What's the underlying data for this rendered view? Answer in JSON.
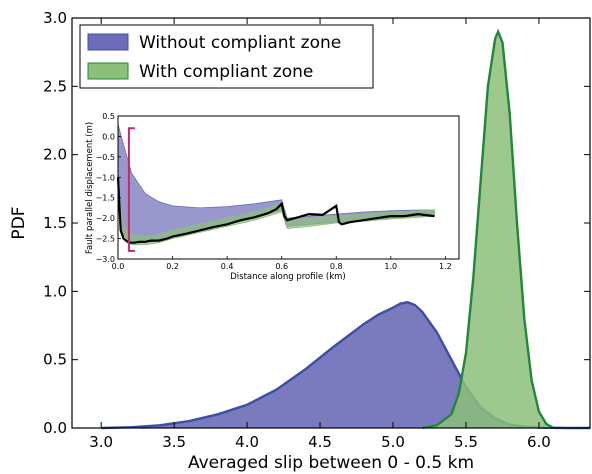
{
  "chart_data": [
    {
      "type": "area",
      "xlabel": "Averaged slip between 0 - 0.5 km",
      "ylabel": "PDF",
      "xlim": [
        2.8,
        6.35
      ],
      "ylim": [
        0,
        3.0
      ],
      "x_ticks": [
        "3.0",
        "3.5",
        "4.0",
        "4.5",
        "5.0",
        "5.5",
        "6.0"
      ],
      "y_ticks": [
        "0.0",
        "0.5",
        "1.0",
        "1.5",
        "2.0",
        "2.5",
        "3.0"
      ],
      "grid": false,
      "legend_position": "top-left",
      "series": [
        {
          "name": "Without compliant zone",
          "color": "#6c6cb8",
          "edge_color": "#3b4fa6",
          "x": [
            3.0,
            3.2,
            3.4,
            3.6,
            3.8,
            4.0,
            4.2,
            4.4,
            4.6,
            4.8,
            4.9,
            5.0,
            5.05,
            5.1,
            5.15,
            5.2,
            5.3,
            5.4,
            5.5,
            5.6,
            5.7,
            5.8,
            5.9,
            6.0,
            6.2,
            6.35
          ],
          "y": [
            0.0,
            0.005,
            0.02,
            0.05,
            0.1,
            0.17,
            0.28,
            0.43,
            0.6,
            0.76,
            0.83,
            0.88,
            0.91,
            0.92,
            0.9,
            0.85,
            0.7,
            0.5,
            0.3,
            0.15,
            0.07,
            0.025,
            0.01,
            0.003,
            0.0,
            0.0
          ]
        },
        {
          "name": "With compliant zone",
          "color": "#8cc07a",
          "edge_color": "#22873a",
          "x": [
            5.2,
            5.3,
            5.4,
            5.45,
            5.5,
            5.55,
            5.6,
            5.65,
            5.7,
            5.72,
            5.75,
            5.8,
            5.85,
            5.9,
            5.95,
            6.0,
            6.05,
            6.1
          ],
          "y": [
            0.0,
            0.02,
            0.1,
            0.25,
            0.55,
            1.1,
            1.8,
            2.5,
            2.85,
            2.9,
            2.82,
            2.3,
            1.5,
            0.8,
            0.35,
            0.12,
            0.03,
            0.0
          ]
        }
      ]
    },
    {
      "type": "line",
      "xlabel": "Distance along profile (km)",
      "ylabel": "Fault parallel displacement (m)",
      "xlim": [
        0.0,
        1.25
      ],
      "ylim": [
        -3.0,
        0.5
      ],
      "x_ticks": [
        "0.0",
        "0.2",
        "0.4",
        "0.6",
        "0.8",
        "1.0",
        "1.2"
      ],
      "y_ticks": [
        "0.5",
        "0.0",
        "−0.5",
        "−1.0",
        "−1.5",
        "−2.0",
        "−2.5",
        "−3.0"
      ],
      "bracket": {
        "x": 0.04,
        "y_range": [
          -2.8,
          0.2
        ],
        "color": "#c8286a"
      },
      "bands": [
        {
          "name": "Without compliant zone",
          "color": "#6c6cb8",
          "x": [
            0.0,
            0.02,
            0.05,
            0.1,
            0.15,
            0.2,
            0.3,
            0.4,
            0.5,
            0.6,
            0.62,
            0.7,
            0.8,
            0.9,
            1.0,
            1.1,
            1.16
          ],
          "upper": [
            0.3,
            -0.2,
            -0.9,
            -1.4,
            -1.6,
            -1.7,
            -1.75,
            -1.72,
            -1.65,
            -1.55,
            -2.0,
            -1.95,
            -1.9,
            -1.85,
            -1.82,
            -1.8,
            -1.8
          ],
          "lower": [
            -1.5,
            -2.4,
            -2.6,
            -2.6,
            -2.55,
            -2.45,
            -2.3,
            -2.15,
            -2.0,
            -1.8,
            -2.2,
            -2.15,
            -2.1,
            -2.05,
            -2.0,
            -1.95,
            -1.95
          ]
        },
        {
          "name": "With compliant zone",
          "color": "#8cc07a",
          "x": [
            0.0,
            0.02,
            0.05,
            0.1,
            0.15,
            0.2,
            0.3,
            0.4,
            0.5,
            0.6,
            0.62,
            0.7,
            0.8,
            0.9,
            1.0,
            1.1,
            1.16
          ],
          "upper": [
            -1.3,
            -2.2,
            -2.4,
            -2.45,
            -2.4,
            -2.3,
            -2.15,
            -2.0,
            -1.85,
            -1.65,
            -2.05,
            -2.0,
            -1.95,
            -1.9,
            -1.85,
            -1.82,
            -1.8
          ],
          "lower": [
            -1.7,
            -2.5,
            -2.65,
            -2.65,
            -2.6,
            -2.5,
            -2.35,
            -2.2,
            -2.05,
            -1.85,
            -2.25,
            -2.2,
            -2.12,
            -2.08,
            -2.02,
            -1.98,
            -1.95
          ]
        }
      ],
      "series": [
        {
          "color": "#000000",
          "x": [
            0.0,
            0.01,
            0.02,
            0.04,
            0.06,
            0.08,
            0.1,
            0.12,
            0.15,
            0.18,
            0.2,
            0.25,
            0.3,
            0.35,
            0.4,
            0.45,
            0.5,
            0.55,
            0.58,
            0.6,
            0.61,
            0.62,
            0.65,
            0.7,
            0.75,
            0.8,
            0.81,
            0.82,
            0.85,
            0.9,
            0.95,
            1.0,
            1.05,
            1.1,
            1.16
          ],
          "y": [
            -1.0,
            -2.3,
            -2.5,
            -2.6,
            -2.6,
            -2.58,
            -2.58,
            -2.55,
            -2.55,
            -2.5,
            -2.45,
            -2.38,
            -2.3,
            -2.22,
            -2.15,
            -2.05,
            -1.98,
            -1.88,
            -1.78,
            -1.65,
            -1.95,
            -2.05,
            -2.0,
            -1.9,
            -1.92,
            -1.7,
            -2.1,
            -2.15,
            -2.1,
            -2.05,
            -2.0,
            -1.95,
            -1.95,
            -1.9,
            -1.95
          ]
        }
      ]
    }
  ]
}
